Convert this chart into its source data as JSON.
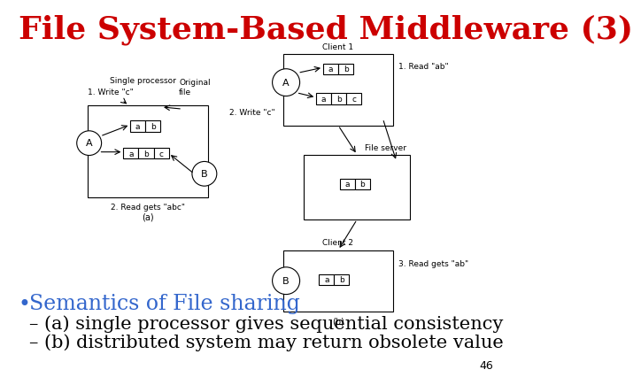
{
  "title": "File System-Based Middleware (3)",
  "title_color": "#cc0000",
  "title_fontsize": 26,
  "bg_color": "#ffffff",
  "bullet_text": "Semantics of File sharing",
  "bullet_color": "#3366cc",
  "bullet_fontsize": 17,
  "sub_bullets": [
    "– (a) single processor gives sequential consistency",
    "– (b) distributed system may return obsolete value"
  ],
  "sub_bullet_color": "#000000",
  "sub_bullet_fontsize": 15,
  "page_number": "46",
  "diag_a_label": "Single processor",
  "diag_b_c1_label": "Client 1",
  "diag_b_c2_label": "Client 2",
  "diag_b_fs_label": "File server"
}
